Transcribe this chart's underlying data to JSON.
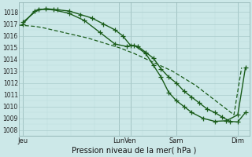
{
  "xlabel": "Pression niveau de la mer( hPa )",
  "background_color": "#cce8e8",
  "grid_major_color": "#aacccc",
  "grid_minor_color": "#bbdddd",
  "line_color": "#1a5c1a",
  "ylim": [
    1007.5,
    1018.8
  ],
  "xlim": [
    0,
    30
  ],
  "xticks_labels": [
    "Jeu",
    "Lun",
    "Ven",
    "Sam",
    "Dim"
  ],
  "xticks_pos": [
    0.5,
    13.0,
    14.5,
    20.5,
    28.5
  ],
  "yticks": [
    1008,
    1009,
    1010,
    1011,
    1012,
    1013,
    1014,
    1015,
    1016,
    1017,
    1018
  ],
  "series1_smooth": {
    "x": [
      0,
      1,
      2,
      3,
      4,
      5,
      6,
      7,
      8,
      9,
      10,
      11,
      12,
      13,
      14,
      15,
      16,
      17,
      18,
      19,
      20,
      21,
      22,
      23,
      24,
      25,
      26,
      27,
      28,
      29
    ],
    "y": [
      1016.9,
      1016.85,
      1016.8,
      1016.7,
      1016.55,
      1016.4,
      1016.25,
      1016.1,
      1015.95,
      1015.8,
      1015.6,
      1015.4,
      1015.2,
      1015.0,
      1014.75,
      1014.5,
      1014.2,
      1013.9,
      1013.6,
      1013.3,
      1013.0,
      1012.6,
      1012.2,
      1011.8,
      1011.3,
      1010.8,
      1010.3,
      1009.8,
      1009.3,
      1013.3
    ]
  },
  "series2_marked": {
    "x": [
      0.5,
      2,
      3.5,
      5,
      6.5,
      8,
      9.5,
      11,
      12.5,
      13.5,
      14.5,
      15.5,
      16.5,
      17.5,
      18.5,
      19.5,
      20.5,
      21.5,
      22.5,
      23.5,
      24.5,
      25.5,
      26.5,
      27.5,
      28.5,
      29.5
    ],
    "y": [
      1017.0,
      1018.1,
      1018.3,
      1018.2,
      1018.1,
      1017.8,
      1017.5,
      1017.0,
      1016.5,
      1016.0,
      1015.2,
      1015.1,
      1014.6,
      1014.1,
      1013.2,
      1012.5,
      1012.0,
      1011.3,
      1010.8,
      1010.3,
      1009.8,
      1009.5,
      1009.1,
      1008.75,
      1008.7,
      1009.5
    ]
  },
  "series3_marked": {
    "x": [
      0.5,
      2.5,
      4.5,
      6.5,
      8.5,
      10.5,
      12.5,
      14.0,
      15.0,
      16.5,
      17.5,
      18.5,
      19.5,
      20.5,
      21.5,
      22.5,
      24.0,
      25.5,
      27.0,
      28.5,
      29.5
    ],
    "y": [
      1017.15,
      1018.25,
      1018.2,
      1017.9,
      1017.3,
      1016.3,
      1015.3,
      1015.1,
      1015.2,
      1014.5,
      1013.5,
      1012.5,
      1011.2,
      1010.5,
      1010.0,
      1009.5,
      1009.0,
      1008.75,
      1008.8,
      1009.3,
      1013.3
    ]
  },
  "lw_smooth": 0.9,
  "lw_marked": 1.0,
  "marker_size": 4
}
